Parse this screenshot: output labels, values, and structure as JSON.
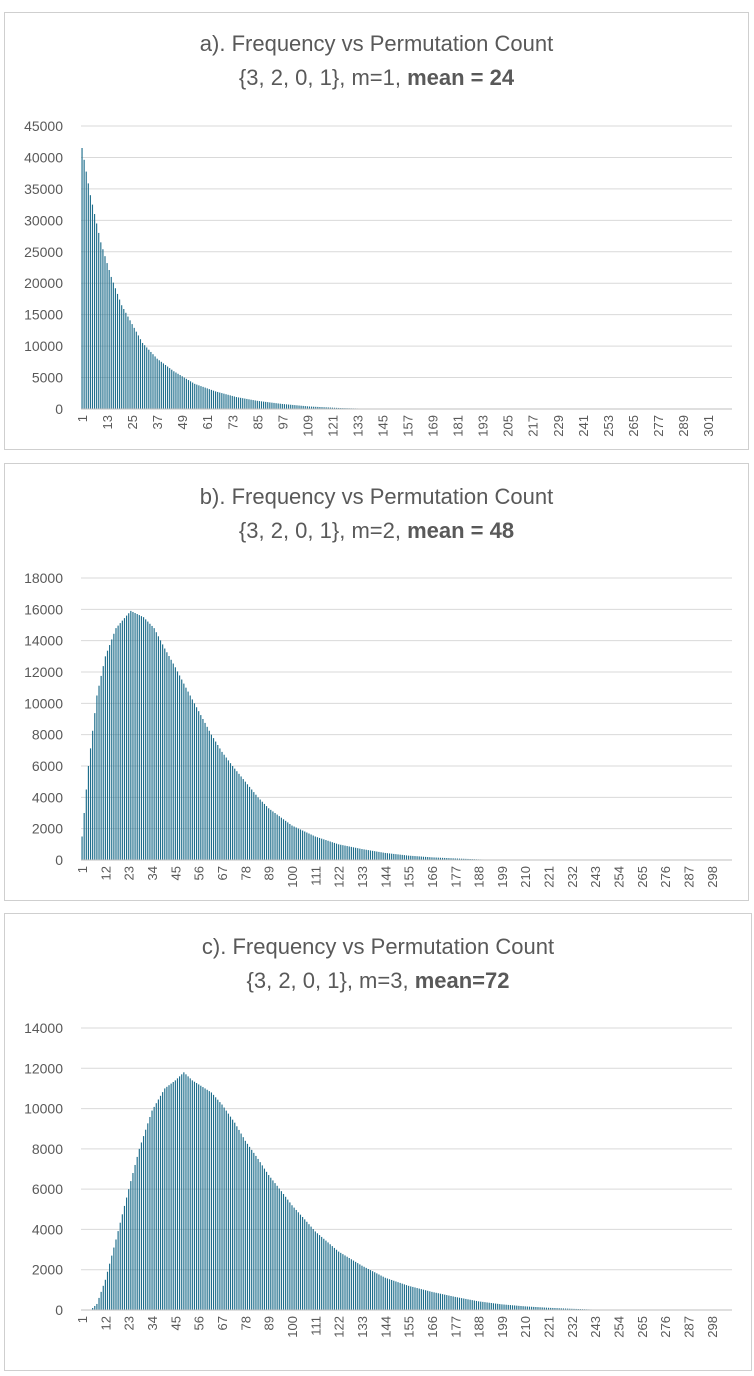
{
  "chart_data": [
    {
      "type": "bar",
      "title_line1": "a). Frequency vs Permutation Count",
      "title_line2_prefix": "{3, 2, 0, 1}, m=1, ",
      "title_line2_bold": "mean = 24",
      "x_min": 1,
      "x_max": 312,
      "x_step": 12,
      "x_ticks": [
        "1",
        "13",
        "25",
        "37",
        "49",
        "61",
        "73",
        "85",
        "97",
        "109",
        "121",
        "133",
        "145",
        "157",
        "169",
        "181",
        "193",
        "205",
        "217",
        "229",
        "241",
        "253",
        "265",
        "277",
        "289",
        "301"
      ],
      "y_ticks": [
        "0",
        "5000",
        "10000",
        "15000",
        "20000",
        "25000",
        "30000",
        "35000",
        "40000",
        "45000"
      ],
      "ylim": [
        0,
        45000
      ],
      "series": [
        {
          "x": 1,
          "y": 41500
        },
        {
          "x": 5,
          "y": 34000
        },
        {
          "x": 10,
          "y": 26500
        },
        {
          "x": 15,
          "y": 21000
        },
        {
          "x": 20,
          "y": 16500
        },
        {
          "x": 25,
          "y": 13500
        },
        {
          "x": 30,
          "y": 10500
        },
        {
          "x": 37,
          "y": 8000
        },
        {
          "x": 45,
          "y": 6000
        },
        {
          "x": 55,
          "y": 4000
        },
        {
          "x": 65,
          "y": 2800
        },
        {
          "x": 75,
          "y": 1900
        },
        {
          "x": 85,
          "y": 1300
        },
        {
          "x": 97,
          "y": 800
        },
        {
          "x": 110,
          "y": 400
        },
        {
          "x": 125,
          "y": 150
        },
        {
          "x": 140,
          "y": 30
        },
        {
          "x": 160,
          "y": 0
        },
        {
          "x": 312,
          "y": 0
        }
      ],
      "bar_color": "#1f6e8c"
    },
    {
      "type": "bar",
      "title_line1": "b). Frequency vs Permutation Count",
      "title_line2_prefix": "{3, 2, 0, 1}, m=2, ",
      "title_line2_bold": "mean = 48",
      "x_min": 1,
      "x_max": 307,
      "x_step": 11,
      "x_ticks": [
        "1",
        "12",
        "23",
        "34",
        "45",
        "56",
        "67",
        "78",
        "89",
        "100",
        "111",
        "122",
        "133",
        "144",
        "155",
        "166",
        "177",
        "188",
        "199",
        "210",
        "221",
        "232",
        "243",
        "254",
        "265",
        "276",
        "287",
        "298"
      ],
      "y_ticks": [
        "0",
        "2000",
        "4000",
        "6000",
        "8000",
        "10000",
        "12000",
        "14000",
        "16000",
        "18000"
      ],
      "ylim": [
        0,
        18000
      ],
      "series": [
        {
          "x": 1,
          "y": 1500
        },
        {
          "x": 4,
          "y": 6000
        },
        {
          "x": 8,
          "y": 10500
        },
        {
          "x": 12,
          "y": 13000
        },
        {
          "x": 17,
          "y": 14800
        },
        {
          "x": 22,
          "y": 15600
        },
        {
          "x": 24,
          "y": 15900
        },
        {
          "x": 30,
          "y": 15500
        },
        {
          "x": 35,
          "y": 14800
        },
        {
          "x": 40,
          "y": 13500
        },
        {
          "x": 45,
          "y": 12300
        },
        {
          "x": 50,
          "y": 11000
        },
        {
          "x": 56,
          "y": 9500
        },
        {
          "x": 62,
          "y": 8000
        },
        {
          "x": 67,
          "y": 6900
        },
        {
          "x": 72,
          "y": 6000
        },
        {
          "x": 78,
          "y": 5000
        },
        {
          "x": 84,
          "y": 4000
        },
        {
          "x": 89,
          "y": 3300
        },
        {
          "x": 95,
          "y": 2700
        },
        {
          "x": 100,
          "y": 2200
        },
        {
          "x": 111,
          "y": 1500
        },
        {
          "x": 122,
          "y": 1000
        },
        {
          "x": 133,
          "y": 700
        },
        {
          "x": 144,
          "y": 450
        },
        {
          "x": 155,
          "y": 280
        },
        {
          "x": 166,
          "y": 170
        },
        {
          "x": 177,
          "y": 100
        },
        {
          "x": 188,
          "y": 40
        },
        {
          "x": 200,
          "y": 0
        },
        {
          "x": 307,
          "y": 0
        }
      ],
      "bar_color": "#1f6e8c"
    },
    {
      "type": "bar",
      "title_line1": "c). Frequency vs Permutation Count",
      "title_line2_prefix": "{3, 2, 0, 1}, m=3, ",
      "title_line2_bold": "mean=72",
      "x_min": 1,
      "x_max": 307,
      "x_step": 11,
      "x_ticks": [
        "1",
        "12",
        "23",
        "34",
        "45",
        "56",
        "67",
        "78",
        "89",
        "100",
        "111",
        "122",
        "133",
        "144",
        "155",
        "166",
        "177",
        "188",
        "199",
        "210",
        "221",
        "232",
        "243",
        "254",
        "265",
        "276",
        "287",
        "298"
      ],
      "y_ticks": [
        "0",
        "2000",
        "4000",
        "6000",
        "8000",
        "10000",
        "12000",
        "14000"
      ],
      "ylim": [
        0,
        14000
      ],
      "series": [
        {
          "x": 1,
          "y": 0
        },
        {
          "x": 5,
          "y": 0
        },
        {
          "x": 8,
          "y": 300
        },
        {
          "x": 12,
          "y": 1500
        },
        {
          "x": 17,
          "y": 3500
        },
        {
          "x": 23,
          "y": 6000
        },
        {
          "x": 28,
          "y": 8000
        },
        {
          "x": 34,
          "y": 9900
        },
        {
          "x": 40,
          "y": 11000
        },
        {
          "x": 45,
          "y": 11400
        },
        {
          "x": 49,
          "y": 11800
        },
        {
          "x": 53,
          "y": 11400
        },
        {
          "x": 56,
          "y": 11200
        },
        {
          "x": 62,
          "y": 10800
        },
        {
          "x": 67,
          "y": 10200
        },
        {
          "x": 73,
          "y": 9300
        },
        {
          "x": 78,
          "y": 8400
        },
        {
          "x": 84,
          "y": 7500
        },
        {
          "x": 89,
          "y": 6700
        },
        {
          "x": 95,
          "y": 5900
        },
        {
          "x": 100,
          "y": 5200
        },
        {
          "x": 106,
          "y": 4500
        },
        {
          "x": 111,
          "y": 3900
        },
        {
          "x": 122,
          "y": 2900
        },
        {
          "x": 133,
          "y": 2200
        },
        {
          "x": 144,
          "y": 1600
        },
        {
          "x": 155,
          "y": 1200
        },
        {
          "x": 166,
          "y": 900
        },
        {
          "x": 177,
          "y": 650
        },
        {
          "x": 188,
          "y": 430
        },
        {
          "x": 199,
          "y": 280
        },
        {
          "x": 210,
          "y": 180
        },
        {
          "x": 221,
          "y": 110
        },
        {
          "x": 232,
          "y": 60
        },
        {
          "x": 243,
          "y": 20
        },
        {
          "x": 254,
          "y": 0
        },
        {
          "x": 307,
          "y": 0
        }
      ],
      "bar_color": "#1f6e8c"
    }
  ]
}
